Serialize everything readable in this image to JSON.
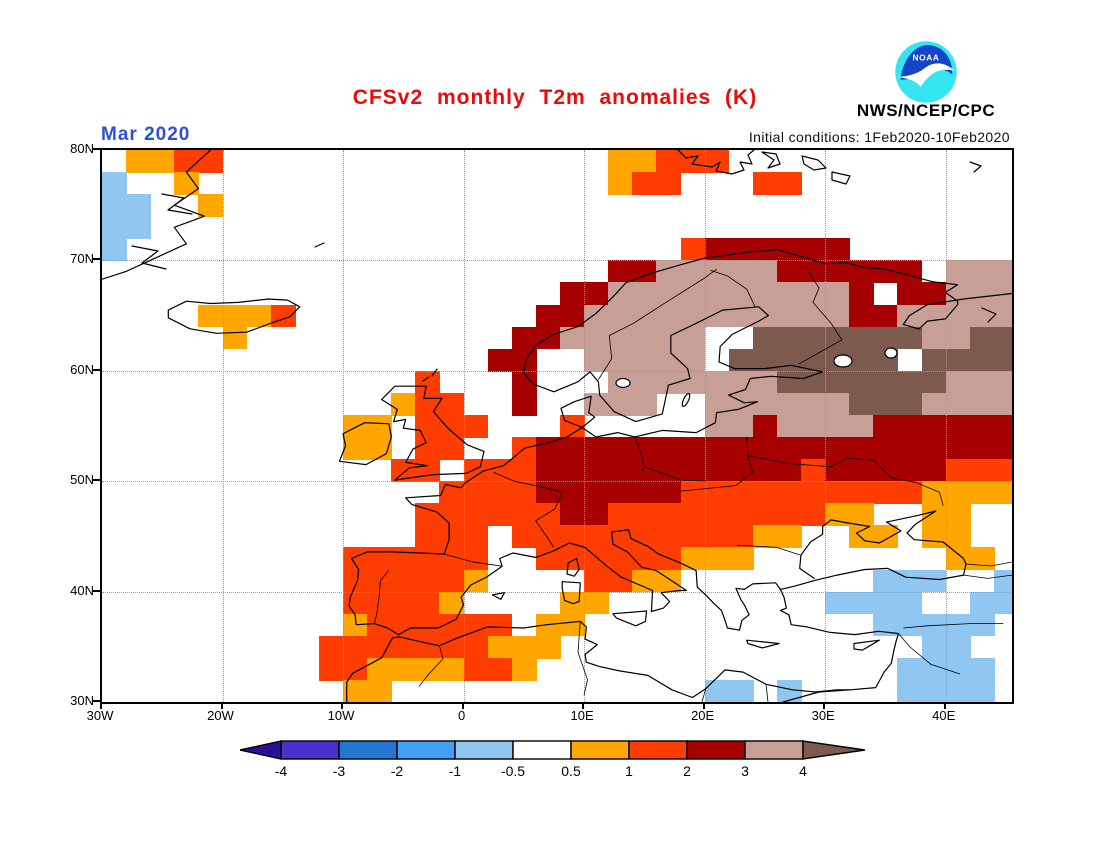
{
  "header": {
    "title": "CFSv2 monthly T2m anomalies (K)",
    "date_label": "Mar 2020",
    "init_label": "Initial conditions: 1Feb2020-10Feb2020",
    "agency_label": "NWS/NCEP/CPC",
    "title_color": "#ea0a0a",
    "date_color": "#2e4fd8"
  },
  "logo": {
    "name": "noaa-logo",
    "text": "NOAA"
  },
  "palette": {
    "below_m4": "#2d0e99",
    "m4_m3": "#4733cc",
    "m3_m2": "#2277d0",
    "m2_m1": "#42a1f5",
    "m1_mhalf": "#8fc7f2",
    "neutral": "#ffffff",
    "phalf_p1": "#ffa600",
    "p1_p2": "#ff3d00",
    "p2_p3": "#a70000",
    "p3_p4": "#c79f96",
    "above_p4": "#7d5a4e"
  },
  "axes": {
    "lat_ticks": [
      {
        "label": "80N",
        "lat": 80
      },
      {
        "label": "70N",
        "lat": 70
      },
      {
        "label": "60N",
        "lat": 60
      },
      {
        "label": "50N",
        "lat": 50
      },
      {
        "label": "40N",
        "lat": 40
      },
      {
        "label": "30N",
        "lat": 30
      }
    ],
    "lon_ticks": [
      {
        "label": "30W",
        "lon": -30
      },
      {
        "label": "20W",
        "lon": -20
      },
      {
        "label": "10W",
        "lon": -10
      },
      {
        "label": "0",
        "lon": 0
      },
      {
        "label": "10E",
        "lon": 10
      },
      {
        "label": "20E",
        "lon": 20
      },
      {
        "label": "30E",
        "lon": 30
      },
      {
        "label": "40E",
        "lon": 40
      }
    ],
    "grid_lons": [
      -20,
      -10,
      0,
      10,
      20,
      30,
      40
    ],
    "grid_lats": [
      70,
      60,
      50,
      40
    ]
  },
  "chart_data": {
    "type": "heatmap",
    "title": "CFSv2 monthly T2m anomalies (K)",
    "units": "K",
    "month": "Mar 2020",
    "initial_conditions": "1Feb2020-10Feb2020",
    "region": {
      "lon_range": [
        -30,
        45.5
      ],
      "lat_range": [
        30,
        80
      ]
    },
    "legend": {
      "labels": [
        "-4",
        "-3",
        "-2",
        "-1",
        "-0.5",
        "0.5",
        "1",
        "2",
        "3",
        "4"
      ],
      "colors": [
        "#2d0e99",
        "#4733cc",
        "#2277d0",
        "#42a1f5",
        "#8fc7f2",
        "#ffffff",
        "#ffa600",
        "#ff3d00",
        "#a70000",
        "#c79f96",
        "#7d5a4e"
      ]
    },
    "grid": {
      "description": "2x2 degree anomaly cells; rows start at 80N, cols at 30W",
      "lon_start": -30,
      "lat_start": 80,
      "cell_deg": 2,
      "codes": {
        ".": "none/|anom|<0.5",
        "b": "-1 to -0.5",
        "o": "0.5 to 1",
        "r": "1 to 2",
        "R": "2 to 3",
        "t": "3 to 4",
        "T": "above 4"
      },
      "rows": [
        ".oorr................oorrr............",
        "b..o.................orr...rr.........",
        "bb..o.................................",
        "bb....................................",
        "b.......................rRRRRRR.......",
        ".....................RRtttttRRRRRR.ttt",
        "...................RRttttttttttR.RRttt",
        "....ooor..........RRtttttttttttRRttttt",
        ".....o...........RRtttttt..TTTTTTTttTT",
        "................RR..ttttt.TTTTTTT.TTTT",
        ".............r...R...tttttttTTTTTTTttt",
        "............orr..R..ttt..ttttttTTTtttt",
        "..........oo.rrr...r.....ttRttttRRRRRR",
        "..........oo.rr..rRRRRRRRRRRRRRRRRRRRR",
        "............rr.rrrRRRRRRRRRRRrRRRRRrrr",
        "..............rrrrRRRRRRrrrrrrrrrroooo",
        ".............rrrrrrRRrrrrrrrrroo..oo..",
        ".............rrr.rrrrrrrrrroo..oo.oo..",
        "..........rrrrrr..rrrrrrooo........oo.",
        "..........rrrrro....rroo........bbb..b",
        "..........rrrro....oo.........bbbb..bb",
        "..........orrrrrr.oo............bbbbb.",
        ".........rrrrrrrooo...............bb..",
        ".........rroooorro...............bbbb.",
        "..........oo.............bb.b....bbbb."
      ]
    }
  }
}
